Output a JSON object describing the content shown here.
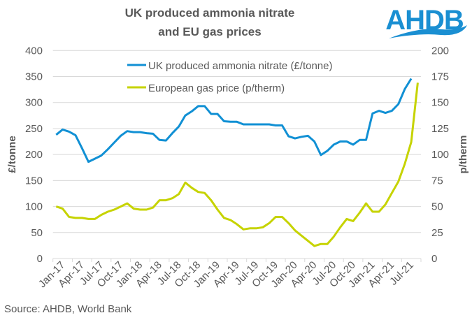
{
  "logo_text": "AHDB",
  "source": "Source: AHDB, World Bank",
  "colors": {
    "blue": "#1190d4",
    "green": "#c6d300",
    "grid": "#d9d9d9",
    "text": "#595959",
    "logo": "#1a8fd2"
  },
  "chart_data": {
    "type": "line",
    "title": [
      "UK produced ammonia nitrate",
      "and EU gas prices"
    ],
    "ylabel": "£/tonne",
    "y2label": "p/therm",
    "ylim": [
      0,
      400
    ],
    "y2lim": [
      0,
      200
    ],
    "yticks": [
      0,
      50,
      100,
      150,
      200,
      250,
      300,
      350,
      400
    ],
    "y2ticks": [
      0,
      25,
      50,
      75,
      100,
      125,
      150,
      175,
      200
    ],
    "xtick_labels": [
      "Jan-17",
      "Apr-17",
      "Jul-17",
      "Oct-17",
      "Jan-18",
      "Apr-18",
      "Jul-18",
      "Oct-18",
      "Jan-19",
      "Apr-19",
      "Jul-19",
      "Oct-19",
      "Jan-20",
      "Apr-20",
      "Jul-20",
      "Oct-20",
      "Jan-21",
      "Apr-21",
      "Jul-21"
    ],
    "x_start": "Jan-17",
    "x_frequency": "monthly",
    "grid": true,
    "legend_placement": "top-center",
    "series": [
      {
        "name": "UK produced ammonia nitrate (£/tonne)",
        "axis": "left",
        "color": "#1190d4",
        "values": [
          238,
          248,
          244,
          237,
          212,
          186,
          192,
          198,
          210,
          223,
          236,
          245,
          243,
          243,
          241,
          240,
          228,
          227,
          241,
          254,
          275,
          283,
          293,
          293,
          278,
          278,
          264,
          263,
          263,
          258,
          258,
          258,
          258,
          258,
          256,
          256,
          235,
          231,
          234,
          236,
          225,
          199,
          207,
          219,
          225,
          225,
          219,
          228,
          228,
          279,
          284,
          280,
          284,
          297,
          326,
          346
        ]
      },
      {
        "name": "European gas price (p/therm)",
        "axis": "right",
        "color": "#c6d300",
        "values": [
          50,
          48,
          40,
          39,
          39,
          38,
          38,
          42,
          45,
          47,
          50,
          53,
          48,
          47,
          47,
          49,
          56,
          56,
          58,
          62,
          73,
          68,
          64,
          63,
          56,
          47,
          39,
          37,
          33,
          28,
          29,
          29,
          30,
          34,
          40,
          40,
          34,
          27,
          22,
          17,
          12,
          14,
          14,
          21,
          30,
          38,
          36,
          44,
          53,
          45,
          45,
          52,
          63,
          74,
          91,
          112,
          169
        ]
      }
    ]
  }
}
